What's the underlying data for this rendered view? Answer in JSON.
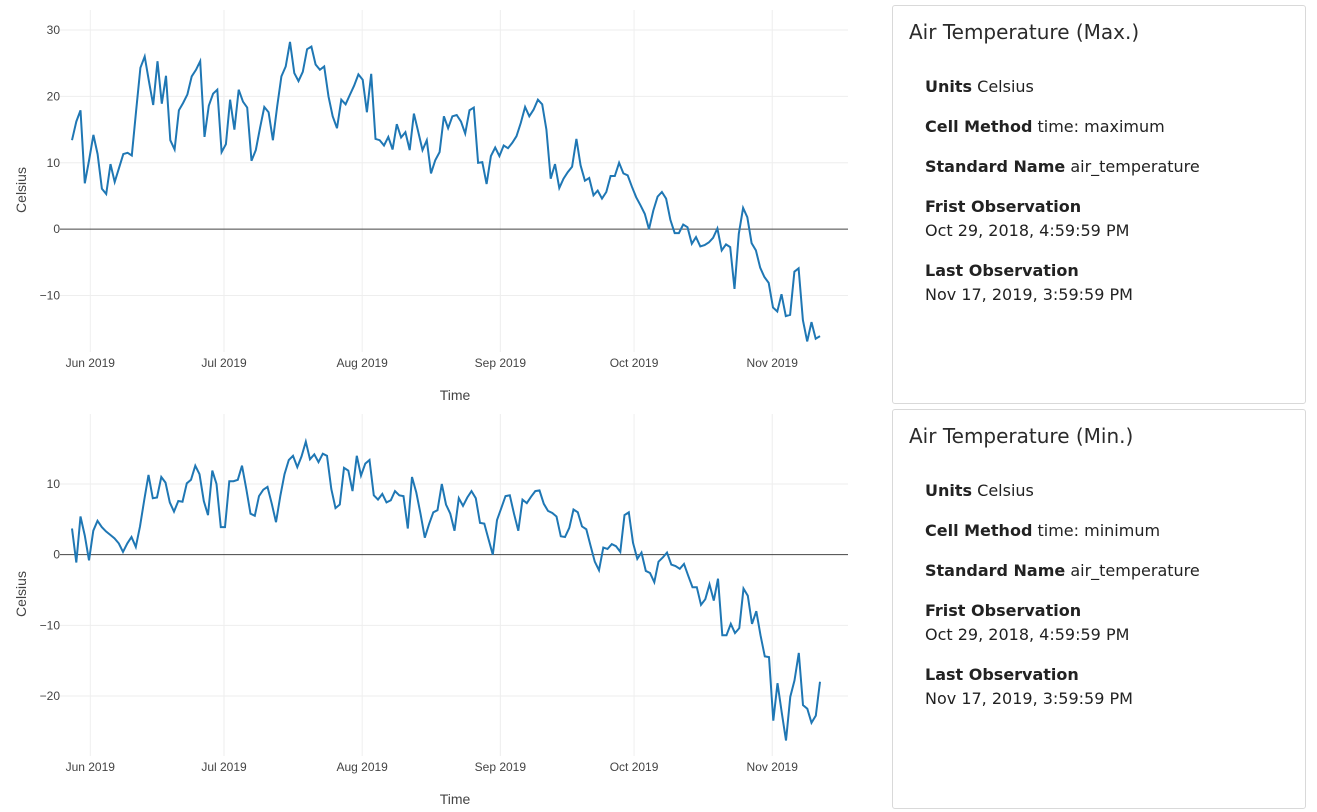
{
  "panels": [
    {
      "card": {
        "title": "Air Temperature (Max.)",
        "units_label": "Units",
        "units": "Celsius",
        "cell_method_label": "Cell Method",
        "cell_method": "time: maximum",
        "standard_name_label": "Standard Name",
        "standard_name": "air_temperature",
        "first_obs_label": "Frist Observation",
        "first_obs": "Oct 29, 2018, 4:59:59 PM",
        "last_obs_label": "Last Observation",
        "last_obs": "Nov 17, 2019, 3:59:59 PM"
      }
    },
    {
      "card": {
        "title": "Air Temperature (Min.)",
        "units_label": "Units",
        "units": "Celsius",
        "cell_method_label": "Cell Method",
        "cell_method": "time: minimum",
        "standard_name_label": "Standard Name",
        "standard_name": "air_temperature",
        "first_obs_label": "Frist Observation",
        "first_obs": "Oct 29, 2018, 4:59:59 PM",
        "last_obs_label": "Last Observation",
        "last_obs": "Nov 17, 2019, 3:59:59 PM"
      }
    }
  ],
  "chart_data": [
    {
      "type": "line",
      "xlabel": "Time",
      "ylabel": "Celsius",
      "x_start": "2019-05-27",
      "x_end": "2019-11-18",
      "x_ticks": [
        "Jun 2019",
        "Jul 2019",
        "Aug 2019",
        "Sep 2019",
        "Oct 2019",
        "Nov 2019"
      ],
      "y_ticks": [
        30,
        20,
        10,
        0,
        -10
      ],
      "ylim": [
        -18.5,
        31.5
      ],
      "zero_line": true,
      "grid": true,
      "line_color": "#1f77b4",
      "values": [
        13.4,
        16.2,
        17.9,
        6.9,
        10.4,
        14.2,
        11.3,
        6.1,
        5.3,
        9.8,
        7.1,
        9.2,
        11.3,
        11.5,
        11.1,
        17.8,
        24.3,
        26.0,
        22.3,
        18.7,
        25.3,
        18.9,
        23.1,
        13.4,
        12.0,
        17.9,
        19.0,
        20.3,
        23.0,
        24.0,
        25.3,
        13.9,
        18.6,
        20.4,
        21.0,
        11.6,
        12.8,
        19.5,
        15.0,
        21.0,
        19.2,
        18.3,
        10.3,
        11.9,
        15.3,
        18.4,
        17.6,
        13.4,
        18.5,
        23.0,
        24.5,
        28.2,
        23.5,
        22.3,
        23.7,
        27.1,
        27.5,
        24.8,
        24.0,
        24.5,
        20.0,
        17.0,
        15.2,
        19.5,
        18.8,
        20.2,
        21.6,
        23.3,
        22.5,
        17.6,
        23.4,
        13.6,
        13.4,
        12.6,
        13.9,
        12.0,
        15.8,
        13.8,
        14.6,
        11.9,
        17.4,
        14.7,
        11.9,
        13.4,
        8.4,
        10.4,
        11.6,
        17.0,
        15.2,
        17.0,
        17.2,
        16.2,
        14.4,
        17.9,
        18.3,
        10.0,
        10.1,
        6.8,
        11.0,
        12.3,
        11.0,
        12.6,
        12.2,
        13.0,
        14.0,
        16.0,
        18.4,
        17.0,
        18.0,
        19.5,
        18.8,
        15.0,
        7.6,
        9.8,
        6.2,
        7.6,
        8.6,
        9.4,
        13.6,
        9.6,
        7.3,
        7.7,
        5.1,
        5.8,
        4.6,
        5.6,
        8.0,
        8.0,
        10.0,
        8.4,
        8.1,
        6.4,
        4.8,
        3.6,
        2.3,
        0.0,
        2.8,
        4.9,
        5.6,
        4.6,
        1.4,
        -0.6,
        -0.6,
        0.7,
        0.3,
        -2.2,
        -1.2,
        -2.6,
        -2.4,
        -2.0,
        -1.3,
        0.1,
        -3.2,
        -2.3,
        -2.7,
        -9.0,
        -0.7,
        3.2,
        1.8,
        -2.1,
        -3.2,
        -5.8,
        -7.2,
        -8.1,
        -11.8,
        -12.4,
        -9.8,
        -13.1,
        -12.9,
        -6.4,
        -5.9,
        -13.7,
        -16.9,
        -14.0,
        -16.5,
        -16.1
      ]
    },
    {
      "type": "line",
      "xlabel": "Time",
      "ylabel": "Celsius",
      "x_start": "2019-05-27",
      "x_end": "2019-11-18",
      "x_ticks": [
        "Jun 2019",
        "Jul 2019",
        "Aug 2019",
        "Sep 2019",
        "Oct 2019",
        "Nov 2019"
      ],
      "y_ticks": [
        10,
        0,
        -10,
        -20
      ],
      "ylim": [
        -28.5,
        18.5
      ],
      "zero_line": true,
      "grid": true,
      "line_color": "#1f77b4",
      "values": [
        3.7,
        -1.1,
        5.4,
        2.7,
        -0.8,
        3.4,
        4.8,
        3.9,
        3.3,
        2.8,
        2.3,
        1.6,
        0.4,
        1.6,
        2.5,
        1.1,
        4.0,
        7.8,
        11.3,
        8.0,
        8.1,
        11.0,
        10.2,
        7.4,
        6.1,
        7.6,
        7.5,
        10.1,
        10.6,
        12.6,
        11.4,
        7.6,
        5.6,
        11.9,
        10.0,
        3.9,
        3.9,
        10.4,
        10.4,
        10.6,
        12.6,
        9.3,
        5.8,
        5.5,
        8.3,
        9.2,
        9.6,
        7.2,
        4.6,
        8.3,
        11.4,
        13.4,
        14.0,
        12.4,
        13.9,
        16.0,
        13.5,
        14.2,
        13.1,
        14.3,
        14.0,
        9.3,
        6.6,
        7.1,
        12.3,
        11.9,
        9.0,
        14.0,
        11.2,
        12.9,
        13.4,
        8.4,
        7.8,
        8.6,
        7.4,
        7.7,
        9.0,
        8.4,
        8.3,
        3.7,
        11.0,
        8.8,
        5.8,
        2.4,
        4.3,
        6.0,
        6.3,
        10.0,
        7.1,
        5.8,
        3.4,
        8.0,
        6.9,
        8.1,
        9.0,
        8.0,
        4.5,
        4.4,
        2.2,
        0.0,
        4.9,
        6.6,
        8.3,
        8.4,
        5.8,
        3.4,
        7.8,
        7.3,
        8.2,
        9.0,
        9.1,
        7.2,
        6.2,
        5.9,
        5.4,
        2.6,
        2.5,
        3.8,
        6.4,
        6.0,
        4.0,
        3.6,
        1.3,
        -1.0,
        -2.2,
        1.0,
        0.8,
        1.5,
        1.2,
        0.4,
        5.6,
        6.0,
        1.7,
        -0.6,
        0.3,
        -2.3,
        -2.6,
        -3.9,
        -1.0,
        -0.4,
        0.3,
        -1.4,
        -1.6,
        -2.0,
        -1.3,
        -3.0,
        -4.6,
        -4.6,
        -7.1,
        -6.3,
        -4.2,
        -6.5,
        -3.4,
        -11.4,
        -11.4,
        -9.8,
        -11.1,
        -10.4,
        -4.8,
        -5.8,
        -9.8,
        -8.0,
        -11.4,
        -14.4,
        -14.5,
        -23.5,
        -18.2,
        -22.4,
        -26.3,
        -20.1,
        -17.8,
        -13.9,
        -21.3,
        -21.8,
        -23.8,
        -22.8,
        -18.0
      ]
    }
  ]
}
